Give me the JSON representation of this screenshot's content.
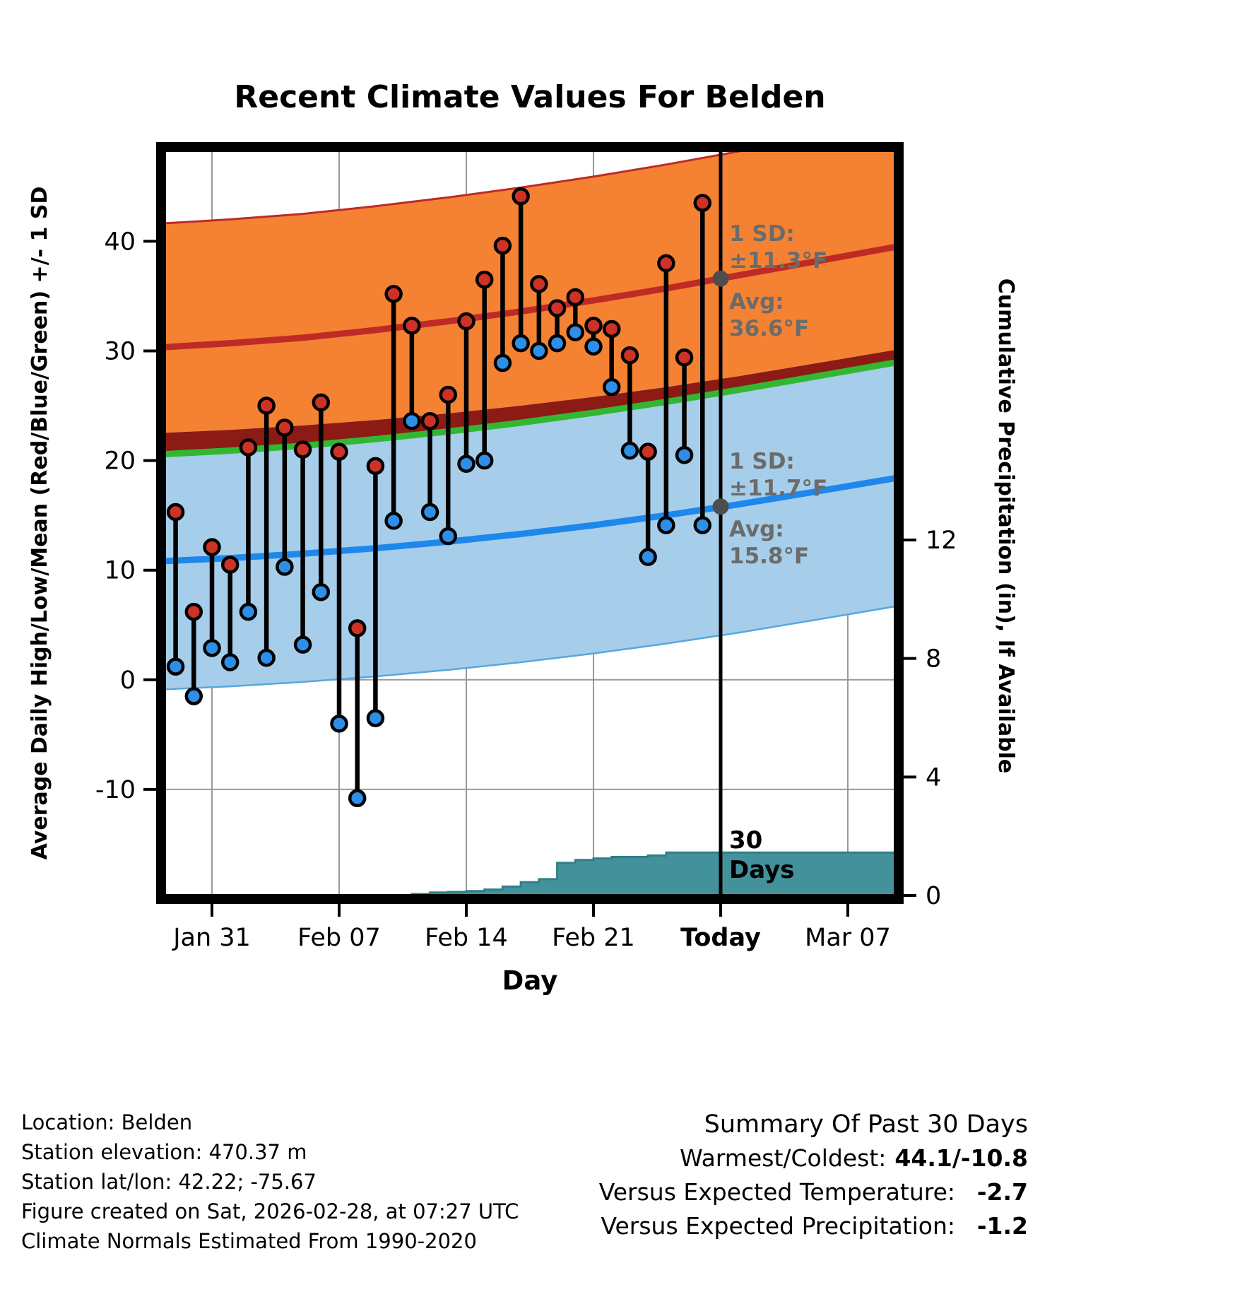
{
  "title": "Recent Climate Values For Belden",
  "axes": {
    "left_label": "Average Daily High/Low/Mean (Red/Blue/Green) +/- 1 SD",
    "right_label": "Cumulative Precipitation (in), If Available",
    "x_label": "Day"
  },
  "annotations": {
    "high": {
      "sd_line1": "1 SD:",
      "sd_line2": "±11.3°F",
      "avg_line1": "Avg:",
      "avg_line2": "36.6°F",
      "avg_value": 36.6
    },
    "low": {
      "sd_line1": "1 SD:",
      "sd_line2": "±11.7°F",
      "avg_line1": "Avg:",
      "avg_line2": "15.8°F",
      "avg_value": 15.8
    },
    "precip_days_line1": "30",
    "precip_days_line2": "Days"
  },
  "footer_left": [
    "Location: Belden",
    "Station elevation: 470.37 m",
    "Station lat/lon: 42.22; -75.67",
    "Figure created on Sat, 2026-02-28, at 07:27 UTC",
    "Climate Normals Estimated From 1990-2020"
  ],
  "summary": {
    "title": "Summary Of Past 30 Days",
    "warmest_label": "Warmest/Coldest:",
    "warmest_value": "44.1/-10.8",
    "temp_label": "Versus Expected Temperature:",
    "temp_value": "-2.7",
    "precip_label": "Versus Expected Precipitation:",
    "precip_value": "-1.2"
  },
  "colors": {
    "high_band": "#F58233",
    "high_line": "#BE2B26",
    "overlap_band": "#8C1A15",
    "mean_line": "#33B733",
    "low_band": "#A6CEEA",
    "low_edge": "#57A7DE",
    "low_line": "#1E87EB",
    "high_dot": "#CD3227",
    "low_dot": "#2E8FE8",
    "precip_fill": "#43929B",
    "precip_edge": "#2F7F88",
    "grid": "#999999",
    "today_marker": "#4D4D4D",
    "annotation_gray": "#6B6B6B",
    "value_blue": "#1E87EB",
    "value_red": "#BE4B28"
  },
  "chart_data": {
    "type": "line",
    "description": "Daily high/low temperatures vs climatological normals (mean ± 1 SD) plus cumulative precipitation",
    "x_range_days": [
      -0.8,
      39.8
    ],
    "day_zero_date": "Jan 29",
    "today_day": 30,
    "x_ticks": [
      {
        "label": "Jan 31",
        "day": 2,
        "bold": false
      },
      {
        "label": "Feb 07",
        "day": 9,
        "bold": false
      },
      {
        "label": "Feb 14",
        "day": 16,
        "bold": false
      },
      {
        "label": "Feb 21",
        "day": 23,
        "bold": false
      },
      {
        "label": "Today",
        "day": 30,
        "bold": true
      },
      {
        "label": "Mar 07",
        "day": 37,
        "bold": false
      }
    ],
    "temp_ticks": [
      40,
      30,
      20,
      10,
      0,
      -10
    ],
    "temp_range": [
      -20,
      48.6
    ],
    "precip_ticks": [
      12,
      8,
      4,
      0
    ],
    "normals": {
      "days": [
        -1,
        3,
        7,
        11,
        15,
        19,
        23,
        27,
        31,
        35,
        40
      ],
      "high_avg": [
        30.3,
        30.7,
        31.2,
        31.9,
        32.7,
        33.6,
        34.6,
        35.7,
        36.9,
        38.1,
        39.6
      ],
      "low_avg": [
        10.8,
        11.1,
        11.5,
        12.0,
        12.6,
        13.3,
        14.1,
        15.0,
        16.0,
        17.1,
        18.5
      ],
      "high_sd": 11.3,
      "low_sd": 11.7
    },
    "daily": [
      {
        "date": "Jan 29",
        "day": 0,
        "high": 15.3,
        "low": 1.2
      },
      {
        "date": "Jan 30",
        "day": 1,
        "high": 6.2,
        "low": -1.5
      },
      {
        "date": "Jan 31",
        "day": 2,
        "high": 12.1,
        "low": 2.9
      },
      {
        "date": "Feb 01",
        "day": 3,
        "high": 10.5,
        "low": 1.6
      },
      {
        "date": "Feb 02",
        "day": 4,
        "high": 21.2,
        "low": 6.2
      },
      {
        "date": "Feb 03",
        "day": 5,
        "high": 25.0,
        "low": 2.0
      },
      {
        "date": "Feb 04",
        "day": 6,
        "high": 23.0,
        "low": 10.3
      },
      {
        "date": "Feb 05",
        "day": 7,
        "high": 21.0,
        "low": 3.2
      },
      {
        "date": "Feb 06",
        "day": 8,
        "high": 25.3,
        "low": 8.0
      },
      {
        "date": "Feb 07",
        "day": 9,
        "high": 20.8,
        "low": -4.0
      },
      {
        "date": "Feb 08",
        "day": 10,
        "high": 4.7,
        "low": -10.8
      },
      {
        "date": "Feb 09",
        "day": 11,
        "high": 19.5,
        "low": -3.5
      },
      {
        "date": "Feb 10",
        "day": 12,
        "high": 35.2,
        "low": 14.5
      },
      {
        "date": "Feb 11",
        "day": 13,
        "high": 32.3,
        "low": 23.6
      },
      {
        "date": "Feb 12",
        "day": 14,
        "high": 23.6,
        "low": 15.3
      },
      {
        "date": "Feb 13",
        "day": 15,
        "high": 26.0,
        "low": 13.1
      },
      {
        "date": "Feb 14",
        "day": 16,
        "high": 32.7,
        "low": 19.7
      },
      {
        "date": "Feb 15",
        "day": 17,
        "high": 36.5,
        "low": 20.0
      },
      {
        "date": "Feb 16",
        "day": 18,
        "high": 39.6,
        "low": 28.9
      },
      {
        "date": "Feb 17",
        "day": 19,
        "high": 44.1,
        "low": 30.7
      },
      {
        "date": "Feb 18",
        "day": 20,
        "high": 36.1,
        "low": 30.0
      },
      {
        "date": "Feb 19",
        "day": 21,
        "high": 33.9,
        "low": 30.7
      },
      {
        "date": "Feb 20",
        "day": 22,
        "high": 34.9,
        "low": 31.7
      },
      {
        "date": "Feb 21",
        "day": 23,
        "high": 32.3,
        "low": 30.4
      },
      {
        "date": "Feb 22",
        "day": 24,
        "high": 32.0,
        "low": 26.7
      },
      {
        "date": "Feb 23",
        "day": 25,
        "high": 29.6,
        "low": 20.9
      },
      {
        "date": "Feb 24",
        "day": 26,
        "high": 20.8,
        "low": 11.2
      },
      {
        "date": "Feb 25",
        "day": 27,
        "high": 38.0,
        "low": 14.1
      },
      {
        "date": "Feb 26",
        "day": 28,
        "high": 29.4,
        "low": 20.5
      },
      {
        "date": "Feb 27",
        "day": 29,
        "high": 43.5,
        "low": 14.1
      }
    ],
    "precip_cumulative": [
      {
        "day": 12,
        "value": 0.0
      },
      {
        "day": 13,
        "value": 0.05
      },
      {
        "day": 14,
        "value": 0.1
      },
      {
        "day": 15,
        "value": 0.12
      },
      {
        "day": 16,
        "value": 0.15
      },
      {
        "day": 17,
        "value": 0.2
      },
      {
        "day": 18,
        "value": 0.3
      },
      {
        "day": 19,
        "value": 0.45
      },
      {
        "day": 20,
        "value": 0.55
      },
      {
        "day": 21,
        "value": 1.1
      },
      {
        "day": 22,
        "value": 1.2
      },
      {
        "day": 23,
        "value": 1.25
      },
      {
        "day": 24,
        "value": 1.3
      },
      {
        "day": 25,
        "value": 1.3
      },
      {
        "day": 26,
        "value": 1.35
      },
      {
        "day": 27,
        "value": 1.45
      },
      {
        "day": 29,
        "value": 1.45
      },
      {
        "day": 40,
        "value": 1.45
      }
    ]
  }
}
